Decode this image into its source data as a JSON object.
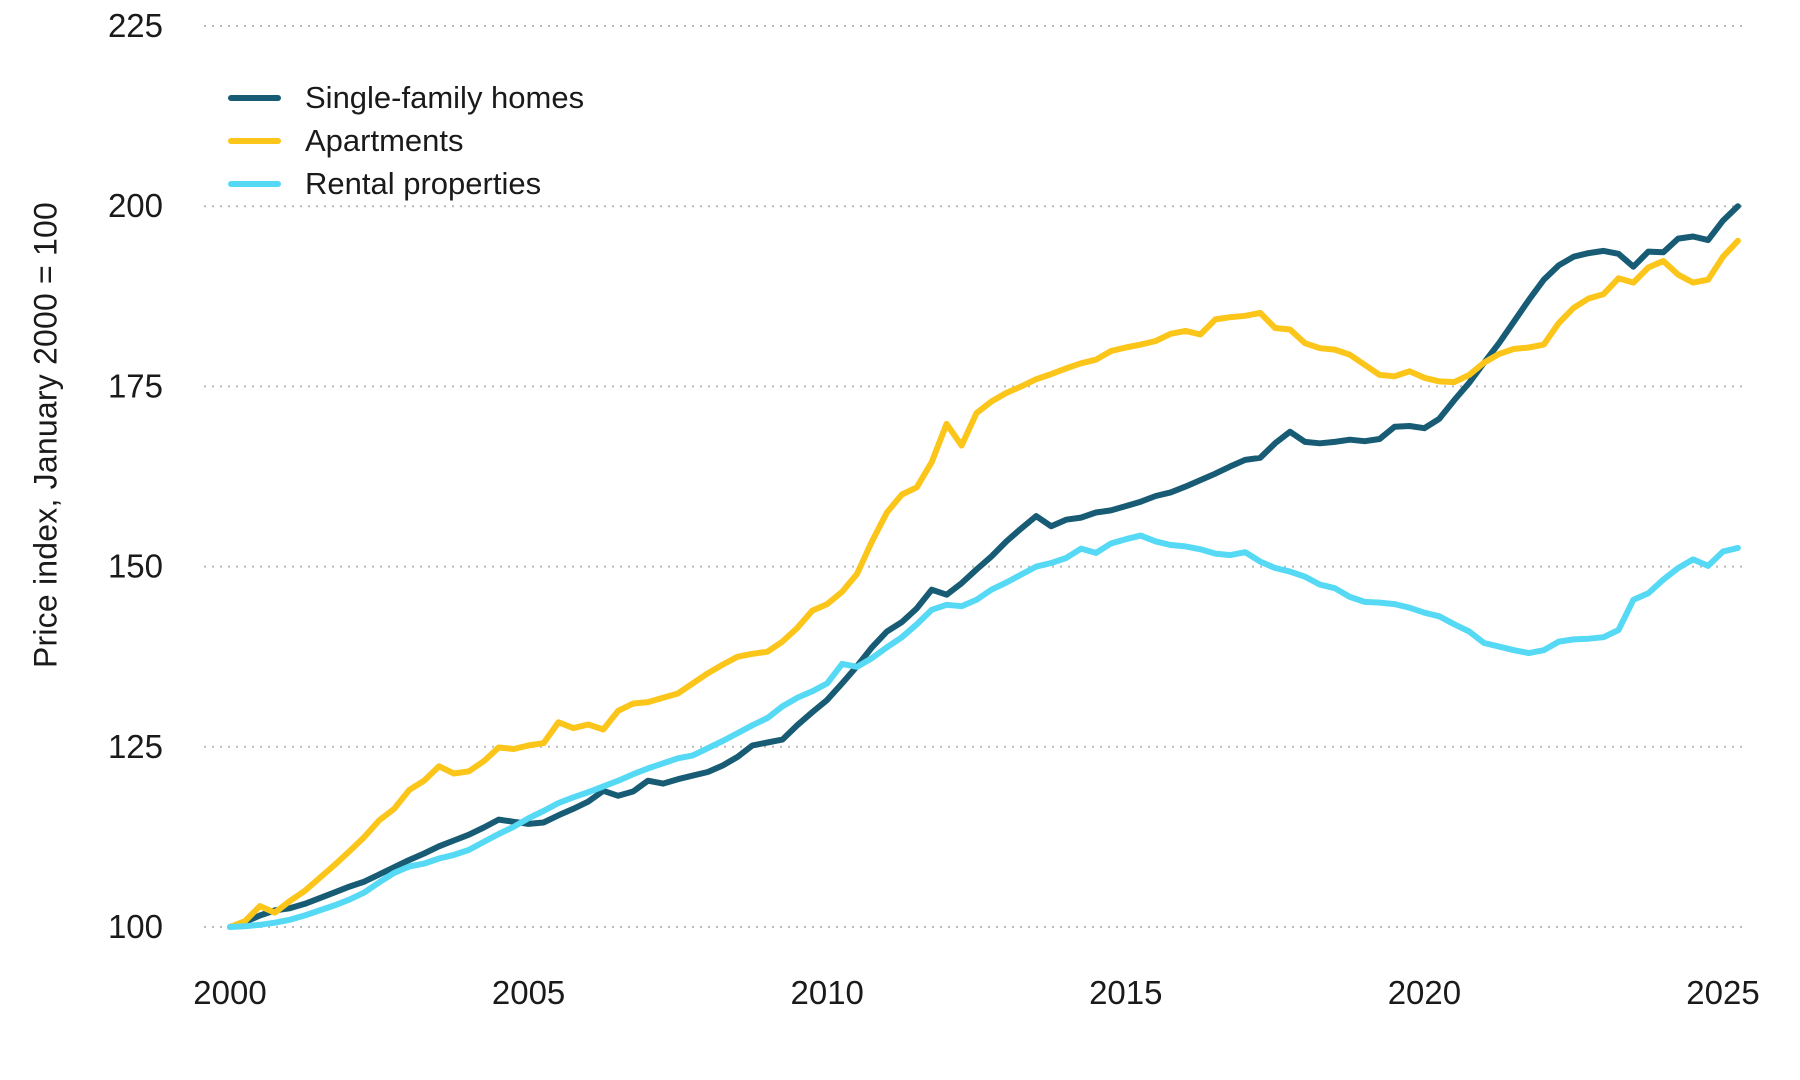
{
  "figure": {
    "background": "#ffffff",
    "text_color": "#1a1a1a",
    "gridline_color": "#b9b9b9"
  },
  "chart_data": {
    "type": "line",
    "title": "",
    "xlabel": "",
    "ylabel": "Price index, January 2000 = 100",
    "x_start": 2000,
    "x_step": 0.25,
    "xlim": [
      1999.6,
      2026.3
    ],
    "ylim": [
      100,
      225
    ],
    "x_ticks": [
      2000,
      2005,
      2010,
      2015,
      2020,
      2025
    ],
    "y_ticks": [
      100,
      125,
      150,
      175,
      200,
      225
    ],
    "grid": "horizontal-dotted",
    "legend_position": "top-left-inside",
    "series": [
      {
        "name": "Single-family homes",
        "color": "#175c74",
        "values": [
          100.0,
          100.7,
          101.6,
          102.3,
          102.6,
          103.2,
          104.0,
          104.8,
          105.6,
          106.3,
          107.3,
          108.3,
          109.3,
          110.2,
          111.2,
          112.0,
          112.8,
          113.8,
          114.9,
          114.6,
          114.3,
          114.5,
          115.5,
          116.4,
          117.4,
          118.9,
          118.2,
          118.8,
          120.3,
          119.9,
          120.5,
          121.0,
          121.5,
          122.4,
          123.6,
          125.2,
          125.6,
          126.0,
          128.0,
          129.8,
          131.5,
          133.8,
          136.2,
          138.8,
          141.0,
          142.3,
          144.2,
          146.8,
          146.1,
          147.7,
          149.6,
          151.4,
          153.5,
          155.3,
          157.0,
          155.6,
          156.5,
          156.8,
          157.5,
          157.8,
          158.4,
          159.0,
          159.8,
          160.3,
          161.1,
          162.0,
          162.9,
          163.9,
          164.8,
          165.1,
          167.1,
          168.7,
          167.3,
          167.1,
          167.3,
          167.6,
          167.4,
          167.7,
          169.4,
          169.5,
          169.2,
          170.5,
          173.1,
          175.5,
          178.3,
          181.0,
          184.0,
          187.0,
          189.8,
          191.8,
          193.0,
          193.5,
          193.8,
          193.4,
          191.6,
          193.7,
          193.6,
          195.5,
          195.8,
          195.3,
          198.0,
          200.0
        ]
      },
      {
        "name": "Apartments",
        "color": "#fbc51a",
        "values": [
          100.0,
          100.8,
          102.9,
          102.0,
          103.6,
          105.0,
          106.8,
          108.6,
          110.5,
          112.5,
          114.8,
          116.4,
          119.0,
          120.3,
          122.3,
          121.3,
          121.6,
          123.0,
          124.9,
          124.7,
          125.2,
          125.5,
          128.4,
          127.6,
          128.1,
          127.4,
          130.0,
          131.0,
          131.2,
          131.8,
          132.4,
          133.8,
          135.2,
          136.4,
          137.5,
          137.9,
          138.2,
          139.6,
          141.5,
          143.9,
          144.8,
          146.5,
          149.0,
          153.5,
          157.5,
          160.0,
          161.0,
          164.5,
          169.8,
          166.8,
          171.3,
          172.9,
          174.1,
          175.0,
          176.0,
          176.7,
          177.5,
          178.2,
          178.7,
          179.9,
          180.4,
          180.8,
          181.3,
          182.3,
          182.7,
          182.2,
          184.3,
          184.6,
          184.8,
          185.2,
          183.1,
          182.9,
          181.0,
          180.3,
          180.1,
          179.4,
          178.0,
          176.6,
          176.4,
          177.1,
          176.2,
          175.7,
          175.6,
          176.6,
          178.3,
          179.5,
          180.2,
          180.4,
          180.8,
          183.8,
          185.9,
          187.2,
          187.8,
          190.0,
          189.4,
          191.5,
          192.4,
          190.5,
          189.4,
          189.8,
          193.0,
          195.2
        ]
      },
      {
        "name": "Rental properties",
        "color": "#55d9f4",
        "values": [
          100.0,
          100.1,
          100.3,
          100.6,
          101.0,
          101.6,
          102.3,
          103.0,
          103.8,
          104.8,
          106.2,
          107.5,
          108.4,
          108.8,
          109.5,
          110.0,
          110.7,
          111.8,
          112.9,
          113.9,
          115.1,
          116.1,
          117.2,
          118.0,
          118.7,
          119.5,
          120.3,
          121.2,
          122.0,
          122.7,
          123.4,
          123.8,
          124.8,
          125.8,
          126.9,
          128.0,
          129.0,
          130.6,
          131.8,
          132.7,
          133.8,
          136.5,
          136.1,
          137.3,
          138.8,
          140.2,
          142.0,
          144.0,
          144.7,
          144.5,
          145.4,
          146.8,
          147.8,
          148.9,
          150.0,
          150.5,
          151.2,
          152.5,
          151.9,
          153.2,
          153.8,
          154.3,
          153.5,
          153.0,
          152.8,
          152.4,
          151.8,
          151.6,
          152.0,
          150.7,
          149.8,
          149.3,
          148.6,
          147.5,
          147.0,
          145.8,
          145.1,
          145.0,
          144.8,
          144.3,
          143.6,
          143.1,
          142.0,
          141.0,
          139.4,
          138.9,
          138.4,
          138.0,
          138.4,
          139.6,
          139.9,
          140.0,
          140.2,
          141.2,
          145.4,
          146.3,
          148.2,
          149.8,
          151.0,
          150.1,
          152.1,
          152.6
        ]
      }
    ]
  }
}
